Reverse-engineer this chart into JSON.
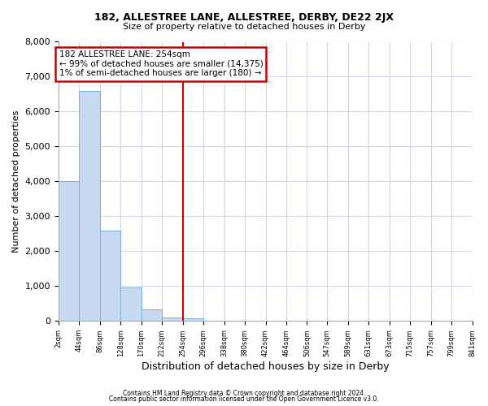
{
  "title": "182, ALLESTREE LANE, ALLESTREE, DERBY, DE22 2JX",
  "subtitle": "Size of property relative to detached houses in Derby",
  "xlabel": "Distribution of detached houses by size in Derby",
  "ylabel": "Number of detached properties",
  "bar_color": "#c6d9f0",
  "bar_edgecolor": "#7bafd4",
  "vline_x": 254,
  "vline_color": "#cc0000",
  "annotation_title": "182 ALLESTREE LANE: 254sqm",
  "annotation_line1": "← 99% of detached houses are smaller (14,375)",
  "annotation_line2": "1% of semi-detached houses are larger (180) →",
  "annotation_box_color": "#cc0000",
  "bin_edges": [
    2,
    44,
    86,
    128,
    170,
    212,
    254,
    296,
    338,
    380,
    422,
    464,
    506,
    547,
    589,
    631,
    673,
    715,
    757,
    799,
    841
  ],
  "bar_heights": [
    4000,
    6600,
    2600,
    950,
    320,
    100,
    80,
    0,
    0,
    0,
    0,
    0,
    0,
    0,
    0,
    0,
    0,
    0,
    0,
    0
  ],
  "ylim": [
    0,
    8000
  ],
  "yticks": [
    0,
    1000,
    2000,
    3000,
    4000,
    5000,
    6000,
    7000,
    8000
  ],
  "footer1": "Contains HM Land Registry data © Crown copyright and database right 2024.",
  "footer2": "Contains public sector information licensed under the Open Government Licence v3.0.",
  "background_color": "#ffffff",
  "grid_color": "#d0d8e8"
}
